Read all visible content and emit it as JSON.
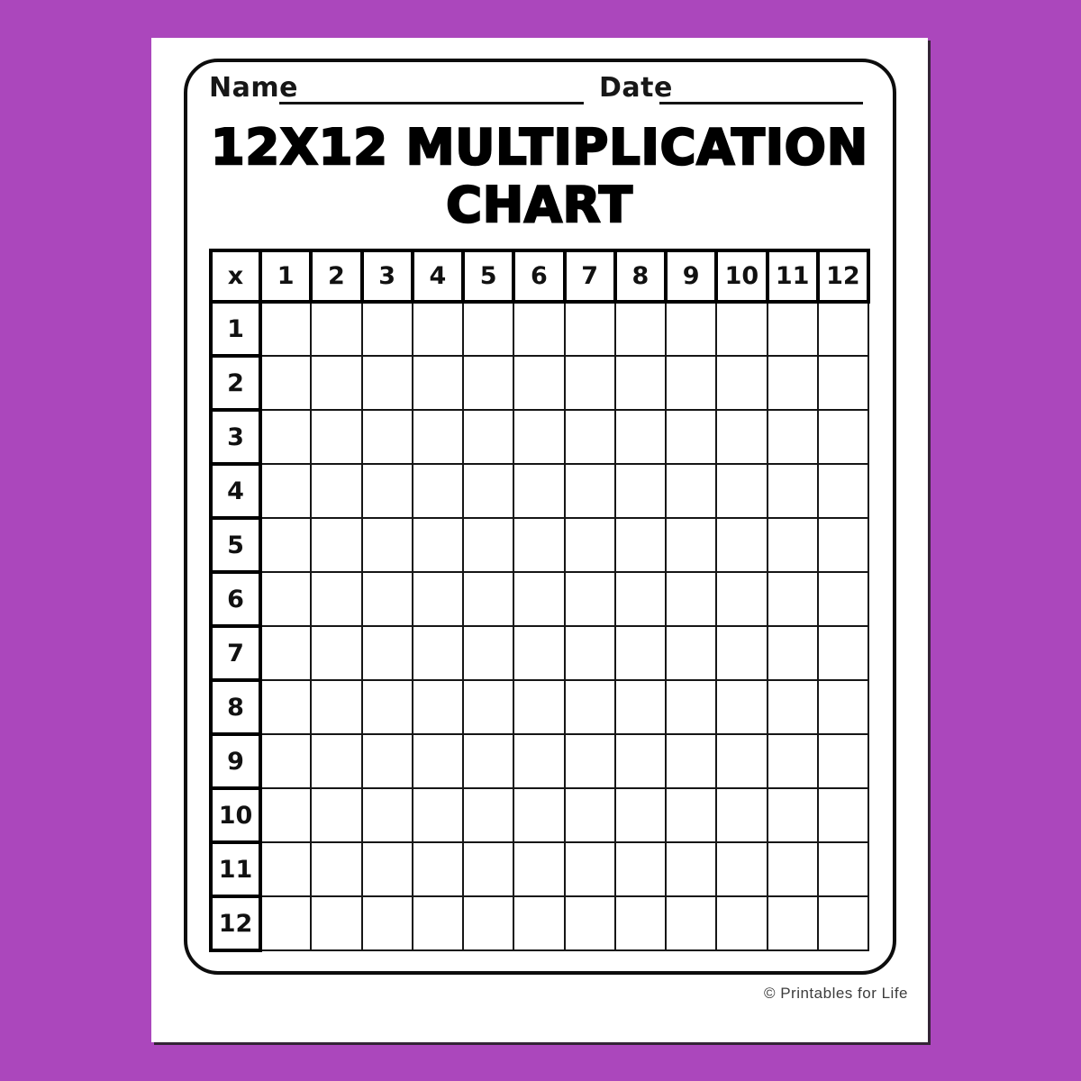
{
  "scene": {
    "background_color": "#ab47bc",
    "paper_color": "#ffffff",
    "frame_border_color": "#0d0d0d"
  },
  "header": {
    "name_label": "Name",
    "date_label": "Date"
  },
  "title": {
    "line1": "12X12 MULTIPLICATION",
    "line2": "CHART"
  },
  "table": {
    "corner_label": "x",
    "column_headers": [
      "1",
      "2",
      "3",
      "4",
      "5",
      "6",
      "7",
      "8",
      "9",
      "10",
      "11",
      "12"
    ],
    "row_headers": [
      "1",
      "2",
      "3",
      "4",
      "5",
      "6",
      "7",
      "8",
      "9",
      "10",
      "11",
      "12"
    ],
    "cell_value": ""
  },
  "footer": {
    "credit": "© Printables for Life"
  }
}
